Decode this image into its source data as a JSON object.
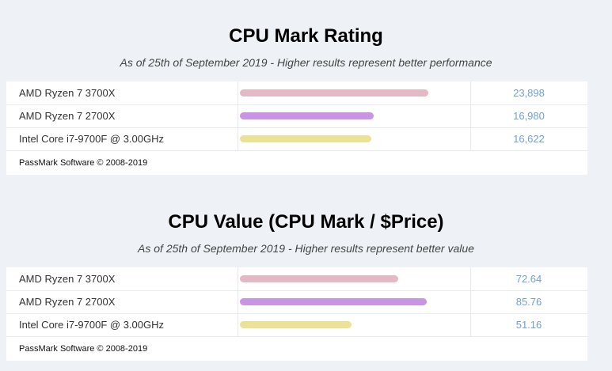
{
  "chart_data": [
    {
      "type": "bar",
      "orientation": "horizontal",
      "title": "CPU Mark Rating",
      "subtitle": "As of 25th of September 2019 - Higher results represent better performance",
      "categories": [
        "AMD Ryzen 7 3700X",
        "AMD Ryzen 7 2700X",
        "Intel Core i7-9700F @ 3.00GHz"
      ],
      "values": [
        23898,
        16980,
        16622
      ],
      "value_labels": [
        "23,898",
        "16,980",
        "16,622"
      ],
      "colors": [
        "#e4b9c5",
        "#c994e1",
        "#ece296"
      ],
      "xlim": [
        0,
        29000
      ],
      "footer": "PassMark Software © 2008-2019"
    },
    {
      "type": "bar",
      "orientation": "horizontal",
      "title": "CPU Value (CPU Mark / $Price)",
      "subtitle": "As of 25th of September 2019 - Higher results represent better value",
      "categories": [
        "AMD Ryzen 7 3700X",
        "AMD Ryzen 7 2700X",
        "Intel Core i7-9700F @ 3.00GHz"
      ],
      "values": [
        72.64,
        85.76,
        51.16
      ],
      "value_labels": [
        "72.64",
        "85.76",
        "51.16"
      ],
      "colors": [
        "#e4b9c5",
        "#c994e1",
        "#ece296"
      ],
      "xlim": [
        0,
        105
      ],
      "footer": "PassMark Software © 2008-2019"
    }
  ]
}
